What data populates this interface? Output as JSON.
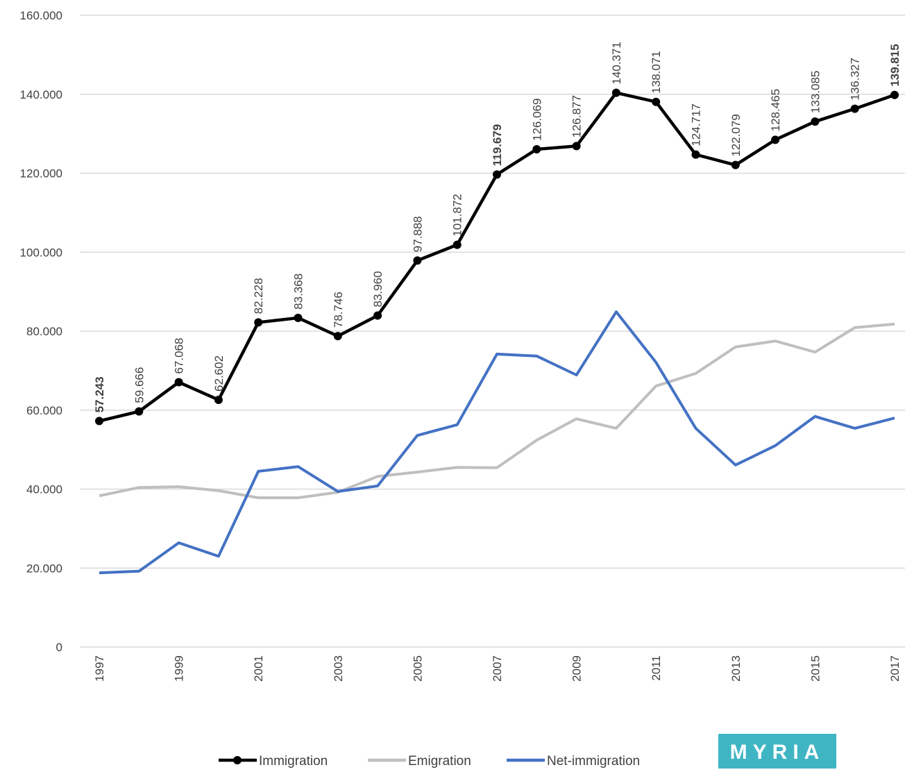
{
  "chart_data": {
    "type": "line",
    "categories": [
      1997,
      null,
      1999,
      null,
      2001,
      null,
      2003,
      null,
      2005,
      null,
      2007,
      null,
      2009,
      null,
      2011,
      null,
      2013,
      null,
      2015,
      null,
      2017
    ],
    "series": [
      {
        "name": "Immigration",
        "color": "#000000",
        "markers": true,
        "values": [
          57243,
          59666,
          67068,
          62602,
          82228,
          83368,
          78746,
          83960,
          97888,
          101872,
          119679,
          126069,
          126877,
          140371,
          138071,
          124717,
          122079,
          128465,
          133085,
          136327,
          139815
        ],
        "value_labels": [
          "57.243",
          "59.666",
          "67.068",
          "62.602",
          "82.228",
          "83.368",
          "78.746",
          "83.960",
          "97.888",
          "101.872",
          "119.679",
          "126.069",
          "126.877",
          "140.371",
          "138.071",
          "124.717",
          "122.079",
          "128.465",
          "133.085",
          "136.327",
          "139.815"
        ],
        "bold_value_labels": [
          0,
          10,
          20
        ]
      },
      {
        "name": "Emigration",
        "color": "#bfbfbf",
        "values": [
          38300,
          40400,
          40600,
          39600,
          37800,
          37800,
          39200,
          43200,
          44300,
          45500,
          45400,
          52400,
          57800,
          55400,
          66100,
          69300,
          76000,
          77500,
          74700,
          80900,
          81800
        ]
      },
      {
        "name": "Net-immigration",
        "color": "#4472c4",
        "values": [
          18800,
          19200,
          26400,
          23000,
          44500,
          45700,
          39400,
          40800,
          53600,
          56300,
          74200,
          73700,
          68900,
          84900,
          72100,
          55400,
          46100,
          51000,
          58400,
          55400,
          58000
        ]
      }
    ],
    "ylim": [
      0,
      160000
    ],
    "yticks": [
      0,
      {
        "value": 20000,
        "label": "20.000"
      },
      {
        "value": 40000,
        "label": "40.000"
      },
      {
        "value": 60000,
        "label": "60.000"
      },
      {
        "value": 80000,
        "label": "80.000"
      },
      {
        "value": 100000,
        "label": "100.000"
      },
      {
        "value": 120000,
        "label": "120.000"
      },
      {
        "value": 140000,
        "label": "140.000"
      },
      {
        "value": 160000,
        "label": "160.000"
      }
    ],
    "grid": true,
    "legend": "bottom",
    "logo": "MYRIA"
  }
}
